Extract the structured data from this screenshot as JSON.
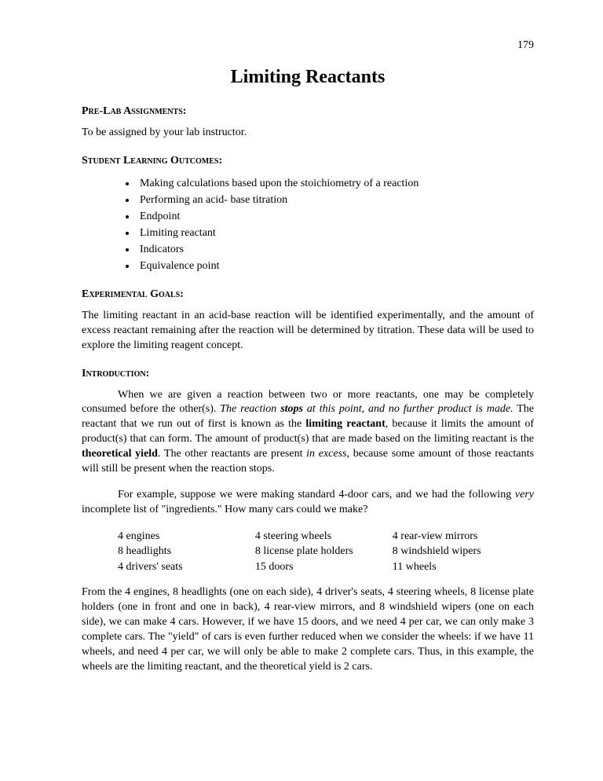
{
  "page_number": "179",
  "title": "Limiting Reactants",
  "sections": {
    "prelab": {
      "heading": "Pre-Lab Assignments:",
      "text": "To be assigned by your lab instructor."
    },
    "outcomes": {
      "heading": "Student Learning Outcomes:",
      "items": [
        "Making calculations based upon the stoichiometry of a reaction",
        "Performing an acid- base titration",
        "Endpoint",
        "Limiting reactant",
        "Indicators",
        "Equivalence point"
      ]
    },
    "goals": {
      "heading": "Experimental Goals:",
      "text": "The limiting reactant in an acid-base reaction will be identified experimentally, and the amount of excess reactant remaining after the reaction will be determined by titration.  These data will be used to explore the limiting reagent concept."
    },
    "intro": {
      "heading": "Introduction:",
      "p1": {
        "t1": "When we are given a reaction between two or more reactants, one may be completely consumed before the other(s).  ",
        "t2": "The reaction ",
        "t3": "stops",
        "t4": " at this point, and no further product is made.",
        "t5": "  The reactant that we run out of first is known as the ",
        "t6": "limiting reactant",
        "t7": ", because it limits the amount of product(s) that can form.  The amount of product(s) that are made based on the limiting reactant is the ",
        "t8": "theoretical yield",
        "t9": ".  The other reactants are present ",
        "t10": "in excess",
        "t11": ", because some amount of those reactants will still be present when the reaction stops."
      },
      "p2": {
        "t1": "For example, suppose we were making standard 4-door cars, and we had the following ",
        "t2": "very",
        "t3": " incomplete list of \"ingredients.\"  How many cars could we make?"
      },
      "ingredients": {
        "col1": [
          "4 engines",
          "8 headlights",
          "4 drivers' seats"
        ],
        "col2": [
          "4 steering wheels",
          "8 license plate holders",
          "15 doors"
        ],
        "col3": [
          "4 rear-view mirrors",
          "8 windshield wipers",
          "11 wheels"
        ]
      },
      "p3": "From the 4 engines, 8 headlights (one on each side), 4 driver's seats, 4 steering wheels, 8 license plate holders (one in front and one in back), 4 rear-view mirrors, and 8 windshield wipers (one on each side), we can make 4 cars.  However, if we have 15 doors, and we need 4 per car, we can only make 3 complete cars.  The \"yield\" of cars is even further reduced when we consider the wheels:  if we have 11 wheels, and need 4 per car, we will only be able to make 2 complete cars.  Thus, in this example, the wheels are the limiting reactant, and the theoretical yield is 2 cars."
    }
  }
}
